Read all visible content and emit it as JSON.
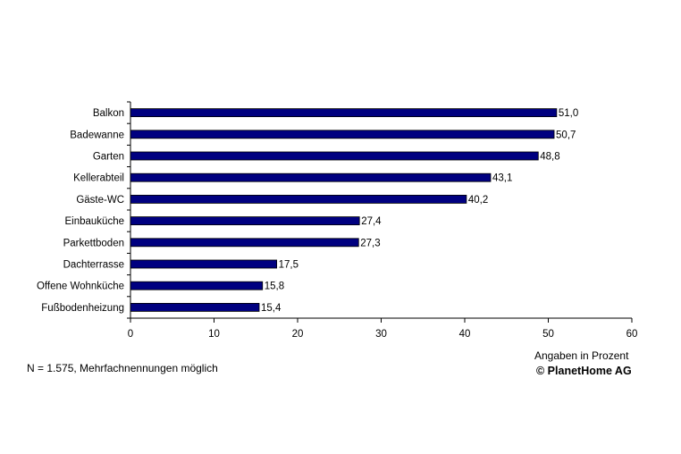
{
  "chart_data": {
    "type": "bar",
    "orientation": "horizontal",
    "categories": [
      "Balkon",
      "Badewanne",
      "Garten",
      "Kellerabteil",
      "Gäste-WC",
      "Einbauküche",
      "Parkettboden",
      "Dachterrasse",
      "Offene Wohnküche",
      "Fußbodenheizung"
    ],
    "values": [
      51.0,
      50.7,
      48.8,
      43.1,
      40.2,
      27.4,
      27.3,
      17.5,
      15.8,
      15.4
    ],
    "value_labels": [
      "51,0",
      "50,7",
      "48,8",
      "43,1",
      "40,2",
      "27,4",
      "27,3",
      "17,5",
      "15,8",
      "15,4"
    ],
    "xlim": [
      0,
      60
    ],
    "xticks": [
      0,
      10,
      20,
      30,
      40,
      50,
      60
    ],
    "grid": false,
    "legend": "none",
    "bar_color": "#000080",
    "unit_label": "Angaben in Prozent"
  },
  "footer": {
    "note": "N = 1.575, Mehrfachnennungen möglich",
    "copyright": "© PlanetHome AG"
  }
}
